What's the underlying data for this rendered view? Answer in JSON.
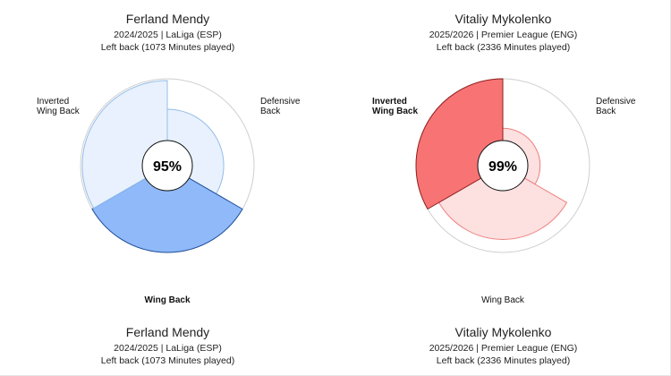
{
  "colors": {
    "blue_fill": "#e8f1fd",
    "blue_stroke": "#93bde8",
    "blue_highlight": "#8fb9f9",
    "blue_highlight_stroke": "#1f4f99",
    "red_fill": "#fde0e0",
    "red_stroke": "#ee7f7f",
    "red_highlight": "#f87373",
    "red_highlight_stroke": "#8e1f1f",
    "outline": "#cfcfcf"
  },
  "chart_data": [
    {
      "type": "pie",
      "player": "Ferland Mendy",
      "season_league": "2024/2025 | LaLiga (ESP)",
      "position_minutes": "Left back (1073 Minutes played)",
      "center_value": "95%",
      "highlight": "Wing Back",
      "segments": [
        {
          "label": "Defensive\nBack",
          "value": 0.65
        },
        {
          "label": "Wing Back",
          "value": 1.0
        },
        {
          "label": "Inverted\nWing Back",
          "value": 0.98
        }
      ]
    },
    {
      "type": "pie",
      "player": "Vitaliy Mykolenko",
      "season_league": "2025/2026 | Premier League (ENG)",
      "position_minutes": "Left back (2336 Minutes played)",
      "center_value": "99%",
      "highlight": "Inverted\nWing Back",
      "segments": [
        {
          "label": "Defensive\nBack",
          "value": 0.43
        },
        {
          "label": "Wing Back",
          "value": 0.85
        },
        {
          "label": "Inverted\nWing Back",
          "value": 1.0
        }
      ]
    }
  ],
  "repeat_headers": [
    {
      "player": "Ferland Mendy",
      "season_league": "2024/2025 | LaLiga (ESP)",
      "position_minutes": "Left back (1073 Minutes played)"
    },
    {
      "player": "Vitaliy Mykolenko",
      "season_league": "2025/2026 | Premier League (ENG)",
      "position_minutes": "Left back (2336 Minutes played)"
    }
  ]
}
